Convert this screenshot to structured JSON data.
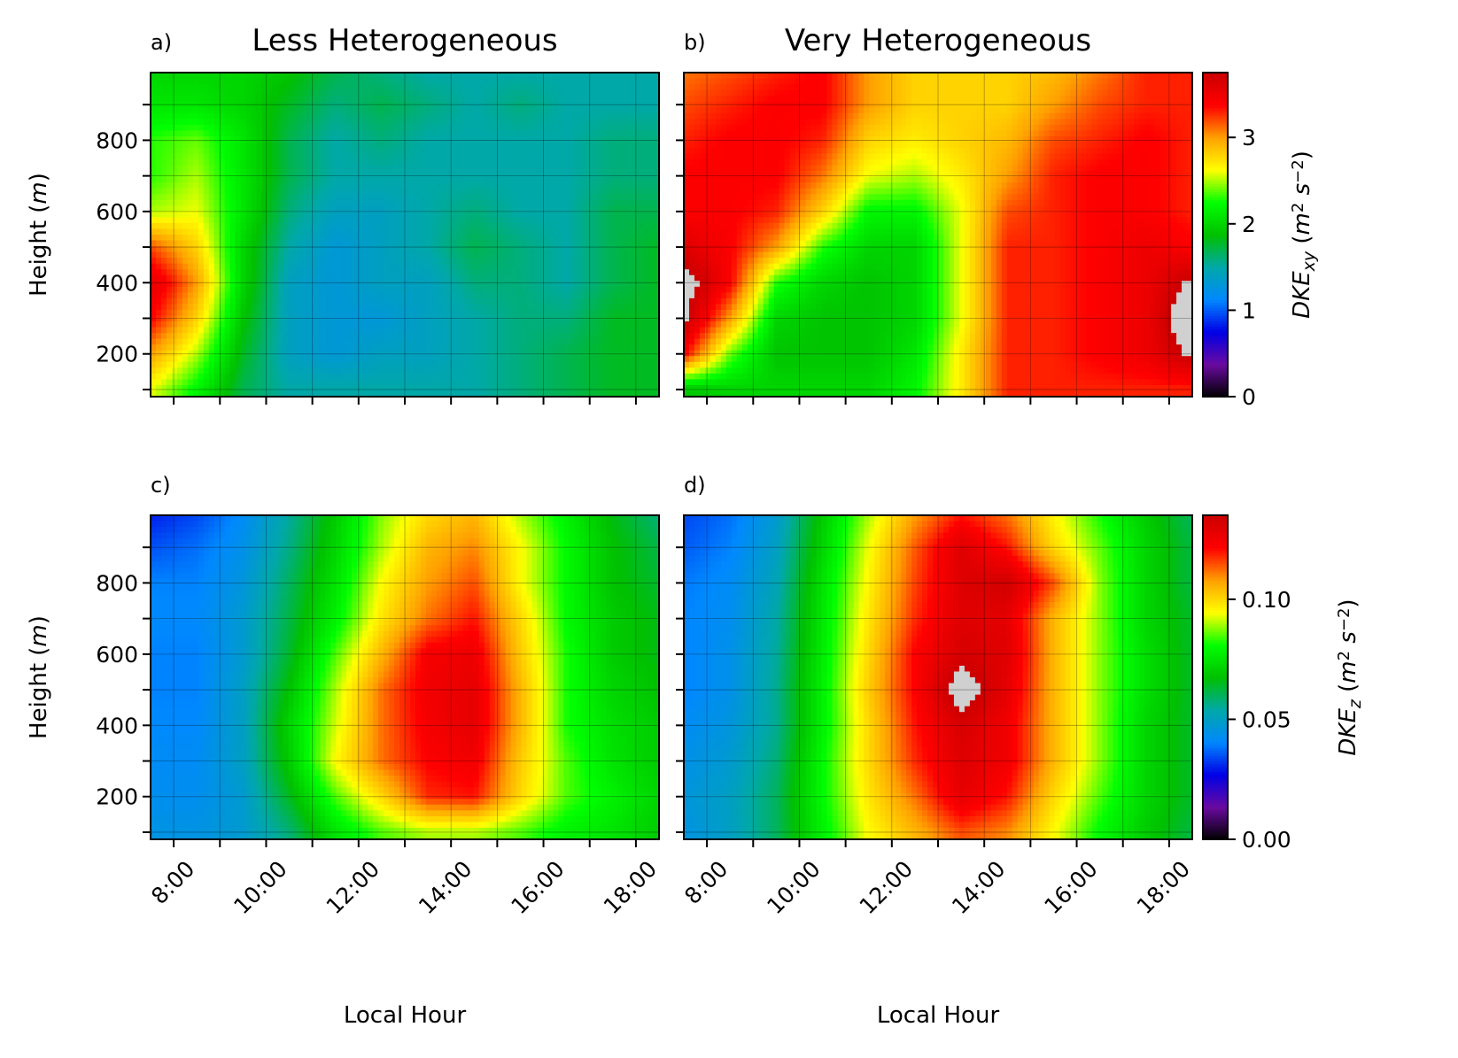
{
  "figure": {
    "colors": {
      "cmap": [
        "#000000",
        "#6a0aa0",
        "#0000e6",
        "#0088ff",
        "#00a8a8",
        "#00c000",
        "#00ff00",
        "#ffff00",
        "#ffa000",
        "#ff0000",
        "#cc0000",
        "#d0d0d0"
      ]
    }
  },
  "chart_data": [
    {
      "id": "a",
      "type": "heatmap",
      "panel_label": "a)",
      "title": "Less Heterogeneous",
      "xlabel": "",
      "ylabel": "Height (m)",
      "ylabel_parts": [
        "Height (",
        "m",
        ")"
      ],
      "xlim": [
        7.5,
        18.5
      ],
      "ylim": [
        80,
        990
      ],
      "yticks": [
        "200",
        "400",
        "600",
        "800"
      ],
      "xticks": [],
      "colorbar": null,
      "grid": true,
      "value_max": 3.75,
      "time_nodes": [
        7.5,
        8.5,
        9.5,
        10.5,
        11.5,
        12.5,
        13.5,
        14.5,
        15.5,
        16.5,
        17.5,
        18.5
      ],
      "height_nodes": [
        100,
        200,
        300,
        400,
        500,
        600,
        700,
        800,
        900,
        990
      ],
      "grid_values": [
        [
          2.6,
          2.2,
          1.7,
          1.5,
          1.5,
          1.5,
          1.5,
          1.5,
          1.6,
          1.7,
          1.8,
          1.8
        ],
        [
          3.0,
          2.5,
          1.8,
          1.4,
          1.3,
          1.4,
          1.4,
          1.5,
          1.6,
          1.7,
          1.8,
          1.8
        ],
        [
          3.4,
          2.8,
          1.9,
          1.4,
          1.3,
          1.3,
          1.4,
          1.5,
          1.6,
          1.6,
          1.8,
          1.8
        ],
        [
          3.6,
          3.0,
          2.0,
          1.4,
          1.3,
          1.4,
          1.4,
          1.6,
          1.6,
          1.5,
          1.7,
          1.8
        ],
        [
          3.2,
          2.8,
          2.0,
          1.5,
          1.3,
          1.4,
          1.5,
          1.7,
          1.6,
          1.5,
          1.7,
          1.8
        ],
        [
          2.5,
          2.6,
          2.1,
          1.6,
          1.4,
          1.4,
          1.5,
          1.6,
          1.5,
          1.5,
          1.7,
          1.7
        ],
        [
          2.3,
          2.5,
          2.1,
          1.7,
          1.5,
          1.5,
          1.5,
          1.5,
          1.5,
          1.5,
          1.6,
          1.6
        ],
        [
          2.3,
          2.4,
          2.1,
          1.7,
          1.5,
          1.6,
          1.5,
          1.5,
          1.5,
          1.5,
          1.6,
          1.6
        ],
        [
          2.1,
          2.1,
          2.0,
          1.8,
          1.6,
          1.7,
          1.6,
          1.5,
          1.6,
          1.5,
          1.5,
          1.5
        ],
        [
          2.0,
          2.0,
          2.0,
          1.9,
          1.7,
          1.6,
          1.5,
          1.5,
          1.5,
          1.5,
          1.5,
          1.5
        ]
      ]
    },
    {
      "id": "b",
      "type": "heatmap",
      "panel_label": "b)",
      "title": "Very Heterogeneous",
      "xlabel": "",
      "ylabel": "",
      "xlim": [
        7.5,
        18.5
      ],
      "ylim": [
        80,
        990
      ],
      "yticks": [],
      "xticks": [],
      "value_max": 3.75,
      "grid": true,
      "colorbar": {
        "ticks": [
          {
            "value": 0,
            "label": "0"
          },
          {
            "value": 1,
            "label": "1"
          },
          {
            "value": 2,
            "label": "2"
          },
          {
            "value": 3,
            "label": "3"
          }
        ],
        "range": [
          0,
          3.75
        ],
        "label_parts": [
          {
            "t": "DKE",
            "i": true
          },
          {
            "t": "xy",
            "i": true,
            "sub": true
          },
          {
            "t": " (",
            "i": false
          },
          {
            "t": "m",
            "i": true
          },
          {
            "t": "2",
            "sup": true
          },
          {
            "t": " s",
            "i": true
          },
          {
            "t": "−2",
            "sup": true
          },
          {
            "t": ")",
            "i": false
          }
        ]
      },
      "time_nodes": [
        7.5,
        8.5,
        9.5,
        10.5,
        11.5,
        12.5,
        13.5,
        14.5,
        15.5,
        16.5,
        17.5,
        18.5
      ],
      "height_nodes": [
        100,
        200,
        300,
        400,
        500,
        600,
        700,
        800,
        900,
        990
      ],
      "grid_values": [
        [
          1.9,
          2.0,
          2.0,
          2.0,
          2.0,
          2.2,
          2.7,
          3.3,
          3.3,
          3.3,
          3.3,
          3.3
        ],
        [
          3.4,
          2.4,
          1.9,
          1.9,
          1.9,
          2.1,
          2.7,
          3.3,
          3.3,
          3.4,
          3.5,
          3.8
        ],
        [
          3.8,
          3.0,
          2.0,
          1.9,
          1.9,
          2.0,
          2.6,
          3.3,
          3.3,
          3.4,
          3.5,
          4.0
        ],
        [
          3.9,
          3.4,
          2.3,
          2.0,
          1.9,
          2.0,
          2.6,
          3.3,
          3.3,
          3.4,
          3.5,
          3.8
        ],
        [
          3.6,
          3.4,
          3.0,
          2.3,
          2.0,
          2.0,
          2.6,
          3.3,
          3.3,
          3.4,
          3.5,
          3.4
        ],
        [
          3.4,
          3.4,
          3.3,
          2.8,
          2.2,
          2.2,
          2.6,
          3.2,
          3.3,
          3.4,
          3.4,
          3.3
        ],
        [
          3.4,
          3.4,
          3.4,
          3.1,
          2.6,
          2.5,
          2.7,
          3.0,
          3.3,
          3.4,
          3.4,
          3.3
        ],
        [
          3.3,
          3.4,
          3.4,
          3.3,
          2.8,
          2.7,
          2.8,
          2.9,
          3.2,
          3.3,
          3.4,
          3.3
        ],
        [
          3.2,
          3.3,
          3.4,
          3.4,
          3.0,
          2.8,
          2.8,
          2.8,
          3.0,
          3.2,
          3.3,
          3.3
        ],
        [
          3.1,
          3.2,
          3.3,
          3.4,
          3.0,
          2.8,
          2.8,
          2.8,
          2.9,
          3.1,
          3.3,
          3.3
        ]
      ]
    },
    {
      "id": "c",
      "type": "heatmap",
      "panel_label": "c)",
      "title": "",
      "xlabel": "Local Hour",
      "ylabel": "Height (m)",
      "ylabel_parts": [
        "Height (",
        "m",
        ")"
      ],
      "xlim": [
        7.5,
        18.5
      ],
      "ylim": [
        80,
        990
      ],
      "yticks": [
        "200",
        "400",
        "600",
        "800"
      ],
      "xticks": [
        "8:00",
        "10:00",
        "12:00",
        "14:00",
        "16:00",
        "18:00"
      ],
      "colorbar": null,
      "grid": true,
      "value_max": 0.135,
      "time_nodes": [
        7.5,
        8.5,
        9.5,
        10.5,
        11.5,
        12.5,
        13.5,
        14.5,
        15.5,
        16.5,
        17.5,
        18.5
      ],
      "height_nodes": [
        100,
        200,
        300,
        400,
        500,
        600,
        700,
        800,
        900,
        990
      ],
      "grid_values": [
        [
          0.045,
          0.045,
          0.048,
          0.058,
          0.075,
          0.085,
          0.09,
          0.09,
          0.085,
          0.078,
          0.075,
          0.07
        ],
        [
          0.043,
          0.043,
          0.048,
          0.065,
          0.085,
          0.1,
          0.118,
          0.12,
          0.1,
          0.085,
          0.078,
          0.072
        ],
        [
          0.042,
          0.042,
          0.05,
          0.07,
          0.095,
          0.112,
          0.122,
          0.125,
          0.102,
          0.085,
          0.075,
          0.07
        ],
        [
          0.041,
          0.041,
          0.05,
          0.072,
          0.092,
          0.112,
          0.124,
          0.128,
          0.105,
          0.082,
          0.074,
          0.07
        ],
        [
          0.04,
          0.04,
          0.05,
          0.068,
          0.09,
          0.112,
          0.125,
          0.128,
          0.105,
          0.082,
          0.072,
          0.068
        ],
        [
          0.04,
          0.04,
          0.048,
          0.064,
          0.085,
          0.105,
          0.124,
          0.126,
          0.102,
          0.082,
          0.07,
          0.066
        ],
        [
          0.041,
          0.041,
          0.048,
          0.062,
          0.078,
          0.098,
          0.112,
          0.12,
          0.1,
          0.08,
          0.07,
          0.066
        ],
        [
          0.04,
          0.04,
          0.046,
          0.06,
          0.075,
          0.095,
          0.108,
          0.115,
          0.095,
          0.08,
          0.068,
          0.064
        ],
        [
          0.035,
          0.038,
          0.044,
          0.057,
          0.072,
          0.09,
          0.105,
          0.11,
          0.095,
          0.08,
          0.068,
          0.062
        ],
        [
          0.03,
          0.034,
          0.042,
          0.055,
          0.07,
          0.088,
          0.1,
          0.105,
          0.09,
          0.078,
          0.066,
          0.058
        ]
      ]
    },
    {
      "id": "d",
      "type": "heatmap",
      "panel_label": "d)",
      "title": "",
      "xlabel": "Local Hour",
      "ylabel": "",
      "xlim": [
        7.5,
        18.5
      ],
      "ylim": [
        80,
        990
      ],
      "yticks": [],
      "xticks": [
        "8:00",
        "10:00",
        "12:00",
        "14:00",
        "16:00",
        "18:00"
      ],
      "value_max": 0.135,
      "grid": true,
      "colorbar": {
        "ticks": [
          {
            "value": 0.0,
            "label": "0.00"
          },
          {
            "value": 0.05,
            "label": "0.05"
          },
          {
            "value": 0.1,
            "label": "0.10"
          }
        ],
        "range": [
          0,
          0.135
        ],
        "label_parts": [
          {
            "t": "DKE",
            "i": true
          },
          {
            "t": "z",
            "i": true,
            "sub": true
          },
          {
            "t": " (",
            "i": false
          },
          {
            "t": "m",
            "i": true
          },
          {
            "t": "2",
            "sup": true
          },
          {
            "t": " s",
            "i": true
          },
          {
            "t": "−2",
            "sup": true
          },
          {
            "t": ")",
            "i": false
          }
        ]
      },
      "time_nodes": [
        7.5,
        8.5,
        9.5,
        10.5,
        11.5,
        12.5,
        13.5,
        14.5,
        15.5,
        16.5,
        17.5,
        18.5
      ],
      "height_nodes": [
        100,
        200,
        300,
        400,
        500,
        600,
        700,
        800,
        900,
        990
      ],
      "grid_values": [
        [
          0.045,
          0.05,
          0.06,
          0.078,
          0.095,
          0.105,
          0.115,
          0.11,
          0.095,
          0.08,
          0.07,
          0.062
        ],
        [
          0.046,
          0.05,
          0.06,
          0.08,
          0.098,
          0.112,
          0.128,
          0.12,
          0.1,
          0.085,
          0.072,
          0.064
        ],
        [
          0.044,
          0.048,
          0.058,
          0.08,
          0.1,
          0.118,
          0.13,
          0.125,
          0.105,
          0.088,
          0.072,
          0.064
        ],
        [
          0.042,
          0.046,
          0.056,
          0.078,
          0.1,
          0.12,
          0.132,
          0.125,
          0.105,
          0.088,
          0.072,
          0.064
        ],
        [
          0.04,
          0.044,
          0.056,
          0.078,
          0.102,
          0.122,
          0.14,
          0.128,
          0.105,
          0.088,
          0.074,
          0.064
        ],
        [
          0.04,
          0.044,
          0.055,
          0.077,
          0.1,
          0.122,
          0.132,
          0.13,
          0.105,
          0.088,
          0.074,
          0.064
        ],
        [
          0.04,
          0.043,
          0.054,
          0.076,
          0.098,
          0.118,
          0.13,
          0.128,
          0.105,
          0.088,
          0.072,
          0.064
        ],
        [
          0.039,
          0.042,
          0.052,
          0.075,
          0.096,
          0.116,
          0.13,
          0.134,
          0.115,
          0.088,
          0.072,
          0.062
        ],
        [
          0.036,
          0.04,
          0.05,
          0.072,
          0.094,
          0.114,
          0.13,
          0.12,
          0.1,
          0.086,
          0.072,
          0.062
        ],
        [
          0.034,
          0.038,
          0.048,
          0.07,
          0.09,
          0.108,
          0.12,
          0.112,
          0.096,
          0.082,
          0.07,
          0.06
        ]
      ]
    }
  ]
}
